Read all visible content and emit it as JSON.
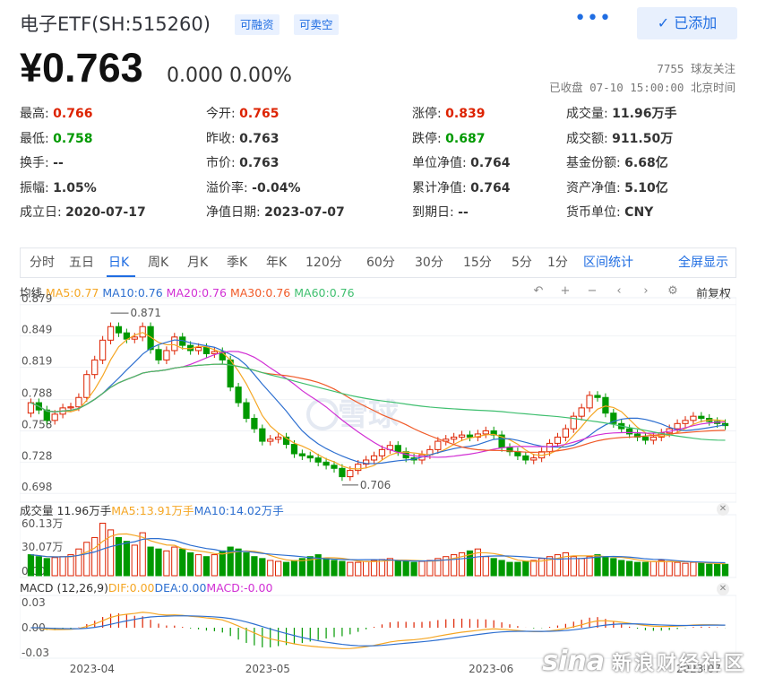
{
  "header": {
    "title": "电子ETF(SH:515260)",
    "tag_margin": "可融资",
    "tag_short": "可卖空",
    "more": "•••",
    "added_button": "已添加",
    "check_icon": "✓"
  },
  "quote": {
    "price": "¥0.763",
    "change": "0.000  0.00%",
    "followers": "7755 球友关注",
    "status": "已收盘 07-10 15:00:00 北京时间"
  },
  "stats": [
    {
      "label": "最高:",
      "value": "0.766",
      "tone": "up"
    },
    {
      "label": "今开:",
      "value": "0.765",
      "tone": "up"
    },
    {
      "label": "涨停:",
      "value": "0.839",
      "tone": "up"
    },
    {
      "label": "成交量:",
      "value": "11.96万手",
      "tone": ""
    },
    {
      "label": "最低:",
      "value": "0.758",
      "tone": "down"
    },
    {
      "label": "昨收:",
      "value": "0.763",
      "tone": ""
    },
    {
      "label": "跌停:",
      "value": "0.687",
      "tone": "down"
    },
    {
      "label": "成交额:",
      "value": "911.50万",
      "tone": ""
    },
    {
      "label": "换手:",
      "value": "--",
      "tone": ""
    },
    {
      "label": "市价:",
      "value": "0.763",
      "tone": ""
    },
    {
      "label": "单位净值:",
      "value": "0.764",
      "tone": ""
    },
    {
      "label": "基金份额:",
      "value": "6.68亿",
      "tone": ""
    },
    {
      "label": "振幅:",
      "value": "1.05%",
      "tone": ""
    },
    {
      "label": "溢价率:",
      "value": "-0.04%",
      "tone": ""
    },
    {
      "label": "累计净值:",
      "value": "0.764",
      "tone": ""
    },
    {
      "label": "资产净值:",
      "value": "5.10亿",
      "tone": ""
    },
    {
      "label": "成立日:",
      "value": "2020-07-17",
      "tone": ""
    },
    {
      "label": "净值日期:",
      "value": "2023-07-07",
      "tone": ""
    },
    {
      "label": "到期日:",
      "value": "--",
      "tone": ""
    },
    {
      "label": "货币单位:",
      "value": "CNY",
      "tone": ""
    }
  ],
  "tabs": [
    "分时",
    "五日",
    "日K",
    "周K",
    "月K",
    "季K",
    "年K",
    "120分",
    "60分",
    "30分",
    "15分",
    "5分",
    "1分"
  ],
  "active_tab": 2,
  "tab_right": [
    "区间统计",
    "全屏显示"
  ],
  "ma_legend": {
    "label": "均线",
    "items": [
      {
        "text": "MA5:0.77",
        "color": "#f5a623"
      },
      {
        "text": "MA10:0.76",
        "color": "#2d6fd0"
      },
      {
        "text": "MA20:0.76",
        "color": "#d12fd4"
      },
      {
        "text": "MA30:0.76",
        "color": "#f05a28"
      },
      {
        "text": "MA60:0.76",
        "color": "#3fbf6f"
      }
    ]
  },
  "fq_label": "前复权",
  "vol_legend": {
    "label": "成交量 11.96万手",
    "items": [
      {
        "text": "MA5:13.91万手",
        "color": "#f5a623"
      },
      {
        "text": "MA10:14.02万手",
        "color": "#2d6fd0"
      }
    ]
  },
  "macd_legend": {
    "label": "MACD (12,26,9)",
    "items": [
      {
        "text": "DIF:0.00",
        "color": "#f5a623"
      },
      {
        "text": "DEA:0.00",
        "color": "#2d6fd0"
      },
      {
        "text": "MACD:-0.00",
        "color": "#d12fd4"
      }
    ]
  },
  "watermark": {
    "logo": "sina",
    "text": "新浪财经社区"
  },
  "chart_data": {
    "type": "candlestick",
    "price_ticks": [
      "0.879",
      "0.849",
      "0.819",
      "0.788",
      "0.758",
      "0.728",
      "0.698"
    ],
    "price_tick_values": [
      0.879,
      0.849,
      0.819,
      0.788,
      0.758,
      0.728,
      0.698
    ],
    "ylim": [
      0.693,
      0.884
    ],
    "high_annotation": "0.871",
    "low_annotation": "0.706",
    "brand_watermark": "雪球",
    "volume_ticks": [
      "60.13万",
      "30.07万",
      "0.00"
    ],
    "volume_tick_values": [
      60.13,
      30.07,
      0
    ],
    "macd_ticks": [
      "0.03",
      "0.00",
      "-0.03"
    ],
    "macd_tick_values": [
      0.03,
      0,
      -0.03
    ],
    "x_labels": [
      {
        "text": "2023-04",
        "index": 8
      },
      {
        "text": "2023-05",
        "index": 30
      },
      {
        "text": "2023-06",
        "index": 58
      },
      {
        "text": "2023-07",
        "index": 84
      }
    ],
    "colors": {
      "up": "#dd2200",
      "down": "#009900"
    },
    "closes": [
      0.785,
      0.778,
      0.768,
      0.774,
      0.78,
      0.781,
      0.79,
      0.812,
      0.826,
      0.845,
      0.858,
      0.852,
      0.846,
      0.848,
      0.858,
      0.836,
      0.826,
      0.835,
      0.848,
      0.84,
      0.835,
      0.838,
      0.832,
      0.834,
      0.826,
      0.8,
      0.785,
      0.77,
      0.76,
      0.748,
      0.75,
      0.752,
      0.745,
      0.736,
      0.734,
      0.732,
      0.728,
      0.725,
      0.722,
      0.714,
      0.72,
      0.726,
      0.73,
      0.734,
      0.74,
      0.744,
      0.738,
      0.732,
      0.73,
      0.735,
      0.74,
      0.748,
      0.75,
      0.752,
      0.754,
      0.752,
      0.755,
      0.758,
      0.754,
      0.742,
      0.738,
      0.734,
      0.73,
      0.732,
      0.738,
      0.746,
      0.752,
      0.76,
      0.772,
      0.78,
      0.792,
      0.79,
      0.775,
      0.765,
      0.76,
      0.755,
      0.752,
      0.749,
      0.752,
      0.756,
      0.76,
      0.765,
      0.768,
      0.772,
      0.77,
      0.767,
      0.765,
      0.763
    ],
    "volumes": [
      22,
      20,
      18,
      19,
      20,
      22,
      28,
      35,
      40,
      55,
      48,
      40,
      36,
      32,
      45,
      30,
      28,
      26,
      30,
      28,
      24,
      22,
      20,
      22,
      26,
      30,
      28,
      24,
      20,
      18,
      16,
      15,
      14,
      16,
      18,
      20,
      22,
      18,
      16,
      15,
      14,
      14,
      15,
      16,
      17,
      18,
      16,
      15,
      14,
      15,
      16,
      18,
      20,
      22,
      24,
      26,
      28,
      20,
      18,
      16,
      14,
      14,
      15,
      16,
      18,
      20,
      22,
      24,
      20,
      18,
      20,
      22,
      20,
      18,
      16,
      15,
      14,
      14,
      15,
      16,
      15,
      14,
      13,
      14,
      13,
      12,
      12,
      11.96
    ]
  }
}
